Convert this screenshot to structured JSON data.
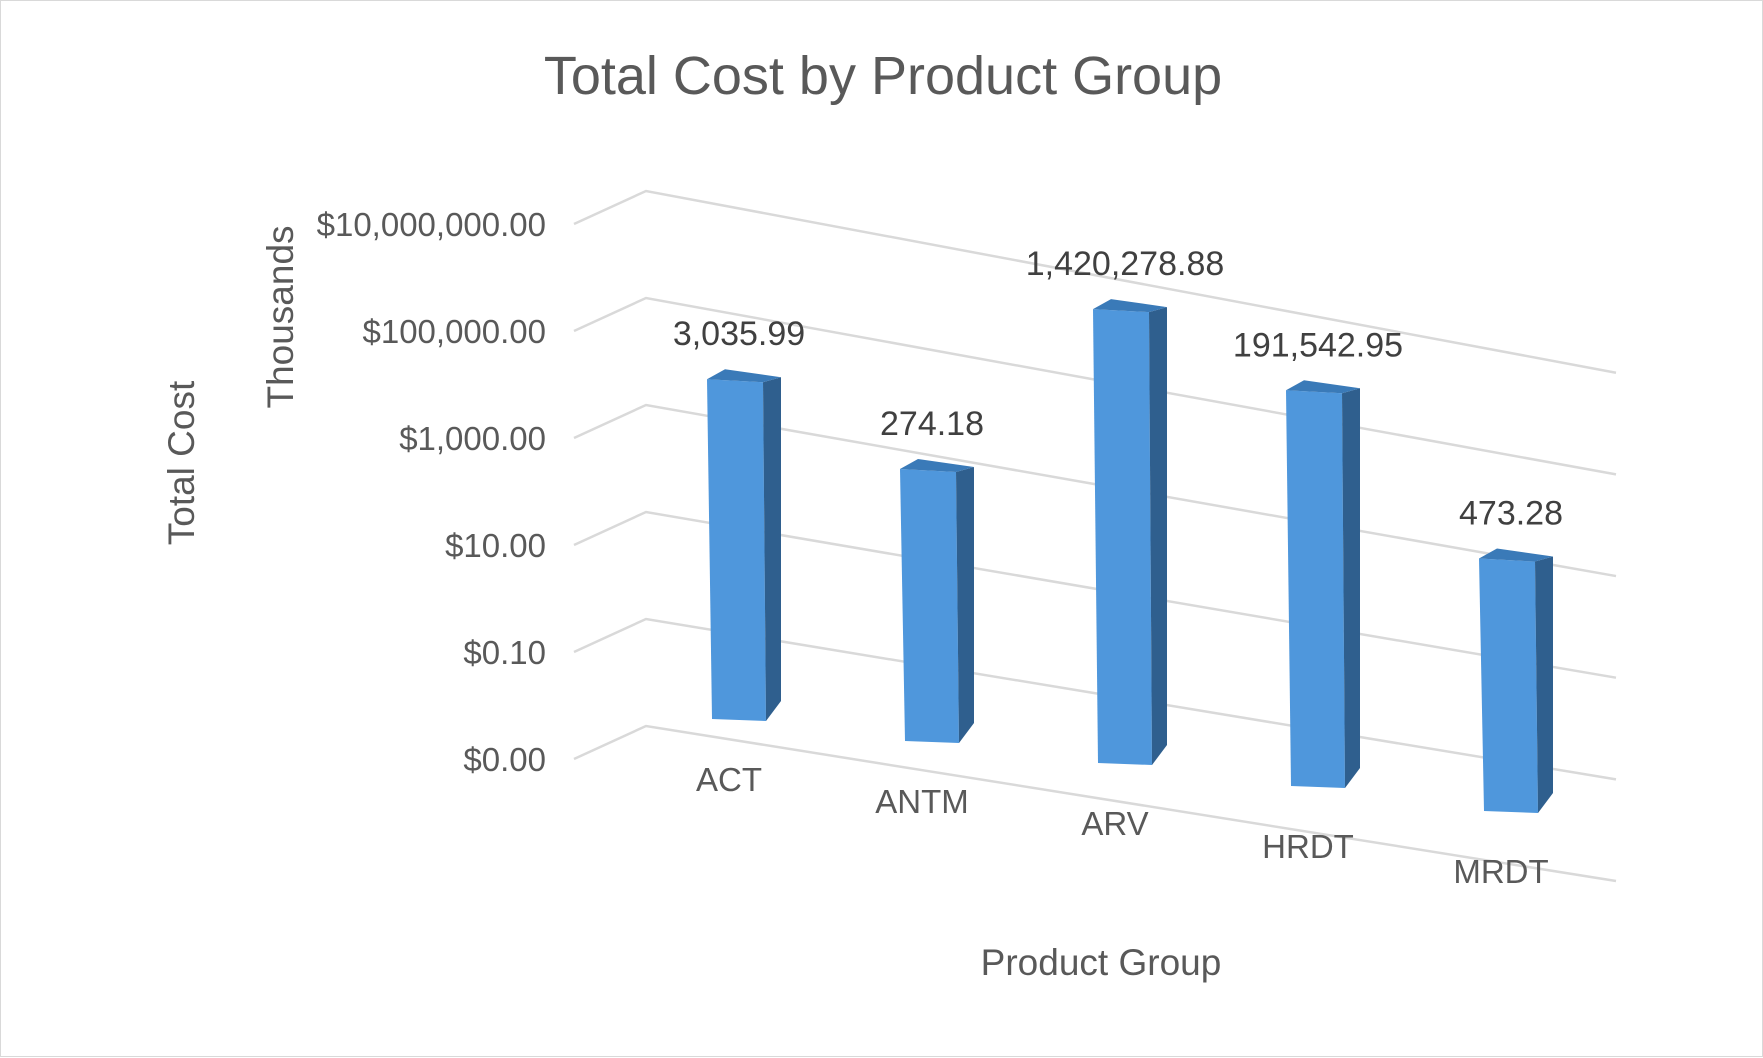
{
  "chart_data": {
    "type": "bar",
    "title": "Total Cost by Product Group",
    "xlabel": "Product Group",
    "ylabel": "Total Cost",
    "y_display_units": "Thousands",
    "y_scale": "log",
    "y_tick_labels": [
      "$10,000,000.00",
      "$100,000.00",
      "$1,000.00",
      "$10.00",
      "$0.10",
      "$0.00"
    ],
    "y_tick_values": [
      10000000,
      100000,
      1000,
      10,
      0.1,
      0.001
    ],
    "ylim": [
      0.001,
      10000000
    ],
    "grid": true,
    "legend": "none",
    "three_d": true,
    "colors": {
      "bar_front": "#4f97dc",
      "bar_side": "#2f5f8e",
      "bar_top": "#3a7ab8"
    },
    "categories": [
      "ACT",
      "ANTM",
      "ARV",
      "HRDT",
      "MRDT"
    ],
    "values": [
      3035.99,
      274.18,
      1420278.88,
      191542.95,
      473.28
    ],
    "data_labels": [
      "3,035.99",
      "274.18",
      "1,420,278.88",
      "191,542.95",
      "473.28"
    ]
  }
}
